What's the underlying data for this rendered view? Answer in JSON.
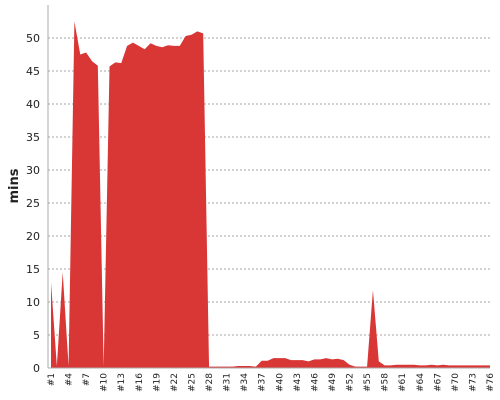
{
  "chart_data": {
    "type": "area",
    "title": "",
    "xlabel": "",
    "ylabel": "mins",
    "ylim": [
      0,
      55
    ],
    "yticks": [
      0,
      5,
      10,
      15,
      20,
      25,
      30,
      35,
      40,
      45,
      50
    ],
    "grid": true,
    "color": "#d93636",
    "xtick_labels": [
      "#1",
      "#4",
      "#7",
      "#10",
      "#13",
      "#16",
      "#19",
      "#22",
      "#25",
      "#28",
      "#31",
      "#34",
      "#37",
      "#40",
      "#43",
      "#46",
      "#49",
      "#52",
      "#55",
      "#58",
      "#61",
      "#64",
      "#67",
      "#70",
      "#73",
      "#76"
    ],
    "series": [
      {
        "x": [
          1,
          2,
          3,
          4,
          5,
          6,
          7,
          8,
          9,
          10,
          11,
          12,
          13,
          14,
          15,
          16,
          17,
          18,
          19,
          20,
          21,
          22,
          23,
          24,
          25,
          26,
          27,
          28,
          29,
          30,
          31,
          32,
          33,
          34,
          35,
          36,
          37,
          38,
          39,
          40,
          41,
          42,
          43,
          44,
          45,
          46,
          47,
          48,
          49,
          50,
          51,
          52,
          53,
          54,
          55,
          56,
          57,
          58,
          59,
          60,
          61,
          62,
          63,
          64,
          65,
          66,
          67,
          68,
          69,
          70,
          71,
          72,
          73,
          74,
          75,
          76
        ],
        "values": [
          13,
          0.3,
          14.5,
          0.3,
          52.5,
          47.5,
          47.8,
          46.5,
          45.8,
          0.3,
          45.7,
          46.3,
          46.2,
          48.8,
          49.3,
          48.8,
          48.3,
          49.2,
          48.8,
          48.6,
          48.9,
          48.8,
          48.8,
          50.3,
          50.5,
          51,
          50.7,
          0.2,
          0.2,
          0.2,
          0.2,
          0.2,
          0.3,
          0.3,
          0.3,
          0.2,
          1.1,
          1.1,
          1.5,
          1.5,
          1.5,
          1.2,
          1.2,
          1.2,
          1,
          1.3,
          1.3,
          1.5,
          1.3,
          1.4,
          1.2,
          0.5,
          0.2,
          0.2,
          0.2,
          11.8,
          1,
          0.4,
          0.4,
          0.5,
          0.5,
          0.5,
          0.5,
          0.4,
          0.4,
          0.5,
          0.4,
          0.5,
          0.4,
          0.4,
          0.4,
          0.4,
          0.4,
          0.4,
          0.4,
          0.4
        ]
      }
    ]
  }
}
